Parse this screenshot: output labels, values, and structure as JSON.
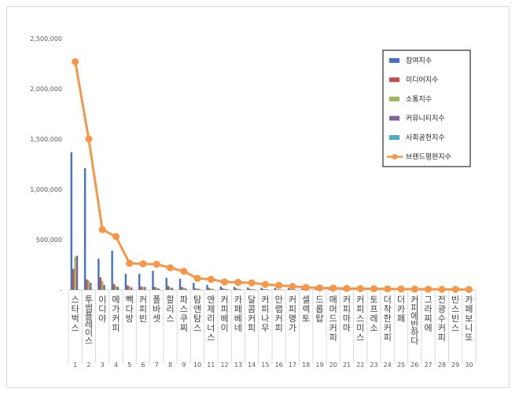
{
  "chart_data": {
    "type": "bar",
    "title": "",
    "xlabel": "",
    "ylabel": "",
    "ylim": [
      0,
      2500000
    ],
    "yticks": [
      0,
      500000,
      1000000,
      1500000,
      2000000,
      2500000
    ],
    "ytick_labels": [
      "-",
      "500,000",
      "1,000,000",
      "1,500,000",
      "2,000,000",
      "2,500,000"
    ],
    "grid": false,
    "legend_position": "top-right",
    "categories": [
      "스타벅스",
      "투썸플레이스",
      "이디야",
      "메가커피",
      "빽다방",
      "커피빈",
      "폴바셋",
      "할리스",
      "파스쿠찌",
      "탐앤탐스",
      "엔제리너스",
      "커피베이",
      "카페베네",
      "달콤커피",
      "커피나무",
      "만랩커피",
      "커피명가",
      "셀렉토",
      "드롭탑",
      "매머드커피",
      "커피마마",
      "커피스미스",
      "토프레소",
      "더착한커피",
      "더카페",
      "커피에반하다",
      "그라찌에",
      "전광수커피",
      "빈스빈스",
      "카페보니또"
    ],
    "rank_labels": [
      "1",
      "2",
      "3",
      "4",
      "5",
      "6",
      "7",
      "8",
      "9",
      "10",
      "11",
      "12",
      "13",
      "14",
      "15",
      "16",
      "17",
      "18",
      "19",
      "20",
      "21",
      "22",
      "23",
      "24",
      "25",
      "26",
      "27",
      "28",
      "29",
      "30"
    ],
    "series": [
      {
        "name": "참여지수",
        "kind": "bar",
        "color": "#4472c4",
        "values": [
          1370000,
          1210000,
          310000,
          390000,
          160000,
          160000,
          190000,
          120000,
          110000,
          70000,
          50000,
          35000,
          30000,
          25000,
          22000,
          20000,
          18000,
          12000,
          10000,
          9000,
          8000,
          7000,
          6000,
          5000,
          5000,
          4000,
          4000,
          3000,
          3000,
          2000
        ]
      },
      {
        "name": "미디어지수",
        "kind": "bar",
        "color": "#c0504d",
        "values": [
          210000,
          105000,
          125000,
          60000,
          45000,
          35000,
          30000,
          40000,
          30000,
          15000,
          20000,
          15000,
          15000,
          10000,
          8000,
          6000,
          5000,
          4000,
          4000,
          3000,
          3000,
          3000,
          2000,
          2000,
          2000,
          2000,
          1500,
          1500,
          1000,
          1000
        ]
      },
      {
        "name": "소통지수",
        "kind": "bar",
        "color": "#9bbb59",
        "values": [
          330000,
          95000,
          90000,
          40000,
          35000,
          30000,
          22000,
          25000,
          22000,
          15000,
          15000,
          12000,
          12000,
          10000,
          8000,
          6000,
          5000,
          4000,
          3000,
          3000,
          3000,
          2000,
          2000,
          2000,
          2000,
          2000,
          1500,
          1500,
          1000,
          1000
        ]
      },
      {
        "name": "커뮤니티지수",
        "kind": "bar",
        "color": "#8064a2",
        "values": [
          340000,
          70000,
          50000,
          30000,
          25000,
          30000,
          15000,
          20000,
          15000,
          10000,
          10000,
          8000,
          8000,
          7000,
          5000,
          4000,
          4000,
          3000,
          3000,
          2000,
          2000,
          2000,
          2000,
          1500,
          1500,
          1500,
          1000,
          1000,
          1000,
          1000
        ]
      },
      {
        "name": "사회공헌지수",
        "kind": "bar",
        "color": "#4bacc6",
        "values": [
          5000,
          4000,
          3000,
          2000,
          2000,
          1500,
          1500,
          1500,
          1000,
          1000,
          1000,
          1000,
          1000,
          1000,
          500,
          500,
          500,
          500,
          500,
          500,
          500,
          500,
          500,
          500,
          500,
          500,
          500,
          500,
          500,
          500
        ]
      },
      {
        "name": "브랜드평판지수",
        "kind": "line",
        "color": "#f79646",
        "values": [
          2270000,
          1500000,
          600000,
          530000,
          265000,
          260000,
          255000,
          220000,
          185000,
          115000,
          105000,
          80000,
          75000,
          70000,
          55000,
          45000,
          35000,
          25000,
          20000,
          18000,
          15000,
          13000,
          12000,
          10000,
          9000,
          8000,
          7000,
          6000,
          5000,
          4000
        ]
      }
    ]
  }
}
